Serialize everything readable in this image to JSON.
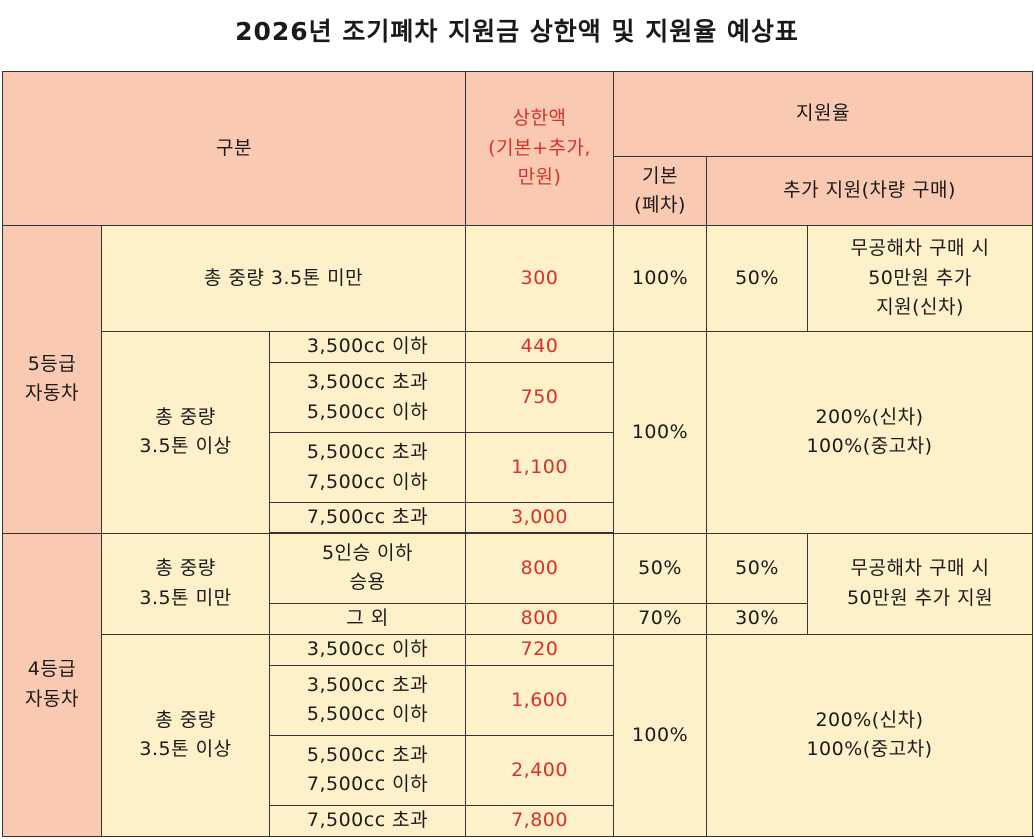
{
  "title": "2026년 조기폐차 지원금 상한액 및 지원율 예상표",
  "header": {
    "category": "구분",
    "limit": "상한액\n(기본+추가,\n만원)",
    "rate": "지원율",
    "base": "기본\n(폐차)",
    "extra": "추가 지원(차량 구매)"
  },
  "grade5": {
    "label": "5등급\n자동차",
    "light": {
      "weight": "총 중량 3.5톤 미만",
      "limit": "300",
      "base": "100%",
      "extra": "50%",
      "note": "무공해차 구매 시\n50만원 추가\n지원(신차)"
    },
    "heavy": {
      "weight": "총 중량\n3.5톤 이상",
      "rows": [
        {
          "cc": "3,500cc 이하",
          "limit": "440"
        },
        {
          "cc": "3,500cc 초과\n5,500cc 이하",
          "limit": "750"
        },
        {
          "cc": "5,500cc 초과\n7,500cc 이하",
          "limit": "1,100"
        },
        {
          "cc": "7,500cc 초과",
          "limit": "3,000"
        }
      ],
      "base": "100%",
      "extra": "200%(신차)\n100%(중고차)"
    }
  },
  "grade4": {
    "label": "4등급\n자동차",
    "light": {
      "weight": "총 중량\n3.5톤 미만",
      "rows": [
        {
          "type": "5인승 이하\n승용",
          "limit": "800",
          "base": "50%",
          "extra": "50%"
        },
        {
          "type": "그 외",
          "limit": "800",
          "base": "70%",
          "extra": "30%"
        }
      ],
      "note": "무공해차 구매 시\n50만원 추가 지원"
    },
    "heavy": {
      "weight": "총 중량\n3.5톤 이상",
      "rows": [
        {
          "cc": "3,500cc 이하",
          "limit": "720"
        },
        {
          "cc": "3,500cc 초과\n5,500cc 이하",
          "limit": "1,600"
        },
        {
          "cc": "5,500cc 초과\n7,500cc 이하",
          "limit": "2,400"
        },
        {
          "cc": "7,500cc 초과",
          "limit": "7,800"
        }
      ],
      "base": "100%",
      "extra": "200%(신차)\n100%(중고차)"
    }
  }
}
